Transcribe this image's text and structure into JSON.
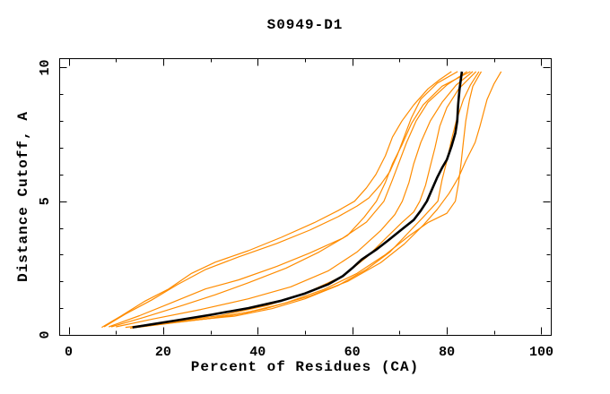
{
  "title": "S0949-D1",
  "chart_data": {
    "type": "line",
    "title": "S0949-D1",
    "xlabel": "Percent of Residues (CA)",
    "ylabel": "Distance Cutoff, A",
    "xlim": [
      -2,
      102
    ],
    "ylim": [
      0,
      10.35
    ],
    "grid": false,
    "legend": "none",
    "x_major_ticks": [
      0,
      20,
      40,
      60,
      80,
      100
    ],
    "x_major_tick_labels": [
      "0",
      "20",
      "40",
      "60",
      "80",
      "100"
    ],
    "x_minor_ticks": [
      10,
      30,
      50,
      70,
      90
    ],
    "y_major_ticks": [
      0,
      5,
      10
    ],
    "y_major_tick_labels": [
      "0",
      "5",
      "10"
    ],
    "y_minor_ticks": [
      1,
      2,
      3,
      4,
      6,
      7,
      8,
      9
    ],
    "colors": {
      "highlight_curve": "#000000",
      "other_curves": "#ff8c00"
    },
    "series": [
      {
        "name": "highlighted-curve",
        "color": "#000000",
        "width": 2.6,
        "points": [
          [
            13.5,
            0.28
          ],
          [
            17,
            0.38
          ],
          [
            23,
            0.55
          ],
          [
            30,
            0.75
          ],
          [
            38,
            1.0
          ],
          [
            45,
            1.28
          ],
          [
            50,
            1.55
          ],
          [
            55,
            1.9
          ],
          [
            58,
            2.2
          ],
          [
            60,
            2.5
          ],
          [
            62,
            2.82
          ],
          [
            65,
            3.18
          ],
          [
            67.5,
            3.52
          ],
          [
            70.5,
            3.95
          ],
          [
            73,
            4.3
          ],
          [
            74.5,
            4.65
          ],
          [
            75.8,
            5.0
          ],
          [
            77,
            5.5
          ],
          [
            78,
            5.9
          ],
          [
            79,
            6.25
          ],
          [
            80,
            6.55
          ],
          [
            81,
            7.05
          ],
          [
            81.8,
            7.55
          ],
          [
            82.2,
            8.0
          ],
          [
            82.4,
            8.6
          ],
          [
            82.7,
            9.2
          ],
          [
            83.2,
            9.85
          ]
        ]
      },
      {
        "name": "curve-1",
        "color": "#ff8c00",
        "width": 1.2,
        "points": [
          [
            7,
            0.28
          ],
          [
            11,
            0.7
          ],
          [
            16,
            1.25
          ],
          [
            21,
            1.7
          ],
          [
            26,
            2.3
          ],
          [
            31,
            2.72
          ],
          [
            38,
            3.15
          ],
          [
            45,
            3.65
          ],
          [
            52,
            4.2
          ],
          [
            57,
            4.65
          ],
          [
            60.5,
            5.0
          ],
          [
            63,
            5.5
          ],
          [
            65,
            6.0
          ],
          [
            67,
            6.7
          ],
          [
            68.5,
            7.4
          ],
          [
            70.5,
            8.0
          ],
          [
            73,
            8.6
          ],
          [
            76,
            9.2
          ],
          [
            78.5,
            9.55
          ],
          [
            81,
            9.85
          ]
        ]
      },
      {
        "name": "curve-2",
        "color": "#ff8c00",
        "width": 1.2,
        "points": [
          [
            7.5,
            0.3
          ],
          [
            12,
            0.78
          ],
          [
            17.5,
            1.3
          ],
          [
            23,
            1.88
          ],
          [
            29,
            2.45
          ],
          [
            36,
            2.92
          ],
          [
            44,
            3.42
          ],
          [
            51,
            3.92
          ],
          [
            57,
            4.42
          ],
          [
            61,
            4.82
          ],
          [
            63.5,
            5.12
          ],
          [
            66,
            5.62
          ],
          [
            68,
            6.12
          ],
          [
            69.5,
            6.72
          ],
          [
            71,
            7.42
          ],
          [
            72.5,
            8.12
          ],
          [
            74.5,
            8.82
          ],
          [
            78,
            9.42
          ],
          [
            82.3,
            9.85
          ]
        ]
      },
      {
        "name": "curve-3",
        "color": "#ff8c00",
        "width": 1.2,
        "points": [
          [
            8.5,
            0.3
          ],
          [
            15,
            0.72
          ],
          [
            22,
            1.22
          ],
          [
            29,
            1.72
          ],
          [
            36,
            2.06
          ],
          [
            44,
            2.56
          ],
          [
            51,
            3.06
          ],
          [
            58,
            3.62
          ],
          [
            63,
            4.22
          ],
          [
            66.7,
            5.0
          ],
          [
            68.5,
            5.8
          ],
          [
            70,
            6.5
          ],
          [
            71.5,
            7.2
          ],
          [
            73.5,
            8.0
          ],
          [
            76,
            8.7
          ],
          [
            80,
            9.35
          ],
          [
            84.3,
            9.85
          ]
        ]
      },
      {
        "name": "curve-4",
        "color": "#ff8c00",
        "width": 1.2,
        "points": [
          [
            9,
            0.3
          ],
          [
            16,
            0.66
          ],
          [
            24,
            1.1
          ],
          [
            31,
            1.5
          ],
          [
            38,
            1.95
          ],
          [
            46,
            2.5
          ],
          [
            53,
            3.1
          ],
          [
            59,
            3.72
          ],
          [
            62.5,
            4.4
          ],
          [
            65.1,
            5.0
          ],
          [
            67,
            5.7
          ],
          [
            68.5,
            6.4
          ],
          [
            70.5,
            7.1
          ],
          [
            72.5,
            7.9
          ],
          [
            75,
            8.6
          ],
          [
            79,
            9.3
          ],
          [
            85,
            9.85
          ]
        ]
      },
      {
        "name": "curve-5",
        "color": "#ff8c00",
        "width": 1.2,
        "points": [
          [
            10,
            0.3
          ],
          [
            18,
            0.6
          ],
          [
            28,
            0.95
          ],
          [
            38,
            1.35
          ],
          [
            47,
            1.8
          ],
          [
            55,
            2.4
          ],
          [
            61,
            3.1
          ],
          [
            66,
            3.9
          ],
          [
            69,
            4.5
          ],
          [
            70.6,
            5.0
          ],
          [
            72,
            5.7
          ],
          [
            73,
            6.4
          ],
          [
            74.5,
            7.2
          ],
          [
            76.5,
            8.0
          ],
          [
            79,
            8.7
          ],
          [
            82,
            9.35
          ],
          [
            85.5,
            9.85
          ]
        ]
      },
      {
        "name": "curve-6",
        "color": "#ff8c00",
        "width": 1.2,
        "points": [
          [
            12,
            0.28
          ],
          [
            22,
            0.5
          ],
          [
            32,
            0.72
          ],
          [
            42,
            1.1
          ],
          [
            50,
            1.55
          ],
          [
            58,
            2.2
          ],
          [
            63,
            2.9
          ],
          [
            67,
            3.6
          ],
          [
            70.5,
            4.2
          ],
          [
            73,
            4.6
          ],
          [
            74.3,
            5.0
          ],
          [
            75.5,
            5.6
          ],
          [
            76.5,
            6.3
          ],
          [
            77.5,
            7.0
          ],
          [
            78.5,
            7.8
          ],
          [
            80,
            8.5
          ],
          [
            82.5,
            9.2
          ],
          [
            86.2,
            9.85
          ]
        ]
      },
      {
        "name": "curve-7",
        "color": "#ff8c00",
        "width": 1.2,
        "points": [
          [
            13,
            0.25
          ],
          [
            20,
            0.42
          ],
          [
            28,
            0.58
          ],
          [
            35,
            0.7
          ],
          [
            43,
            0.98
          ],
          [
            50,
            1.35
          ],
          [
            57,
            1.85
          ],
          [
            63,
            2.45
          ],
          [
            68,
            3.1
          ],
          [
            72,
            3.85
          ],
          [
            75,
            4.4
          ],
          [
            78.1,
            5.0
          ],
          [
            79,
            5.8
          ],
          [
            80,
            6.5
          ],
          [
            81,
            7.3
          ],
          [
            82,
            8.0
          ],
          [
            83.5,
            8.8
          ],
          [
            85,
            9.35
          ],
          [
            86.8,
            9.85
          ]
        ]
      },
      {
        "name": "curve-8",
        "color": "#ff8c00",
        "width": 1.2,
        "points": [
          [
            14,
            0.27
          ],
          [
            22,
            0.45
          ],
          [
            30,
            0.62
          ],
          [
            38,
            0.85
          ],
          [
            46,
            1.2
          ],
          [
            54,
            1.7
          ],
          [
            61,
            2.3
          ],
          [
            67,
            3.0
          ],
          [
            72,
            3.7
          ],
          [
            76,
            4.2
          ],
          [
            80,
            4.55
          ],
          [
            81.8,
            5.0
          ],
          [
            82.5,
            5.7
          ],
          [
            83,
            6.4
          ],
          [
            83.5,
            7.2
          ],
          [
            84,
            8.0
          ],
          [
            84.8,
            8.8
          ],
          [
            85.5,
            9.3
          ],
          [
            87.3,
            9.85
          ]
        ]
      },
      {
        "name": "curve-9",
        "color": "#ff8c00",
        "width": 1.2,
        "points": [
          [
            15,
            0.3
          ],
          [
            24,
            0.5
          ],
          [
            33,
            0.68
          ],
          [
            42,
            1.0
          ],
          [
            51,
            1.45
          ],
          [
            59,
            2.0
          ],
          [
            66,
            2.7
          ],
          [
            71,
            3.4
          ],
          [
            75,
            4.1
          ],
          [
            78,
            4.7
          ],
          [
            80.5,
            5.3
          ],
          [
            82.5,
            5.9
          ],
          [
            84,
            6.5
          ],
          [
            86,
            7.2
          ],
          [
            87,
            7.8
          ],
          [
            88.5,
            8.8
          ],
          [
            90,
            9.4
          ],
          [
            91.5,
            9.85
          ]
        ]
      }
    ]
  }
}
